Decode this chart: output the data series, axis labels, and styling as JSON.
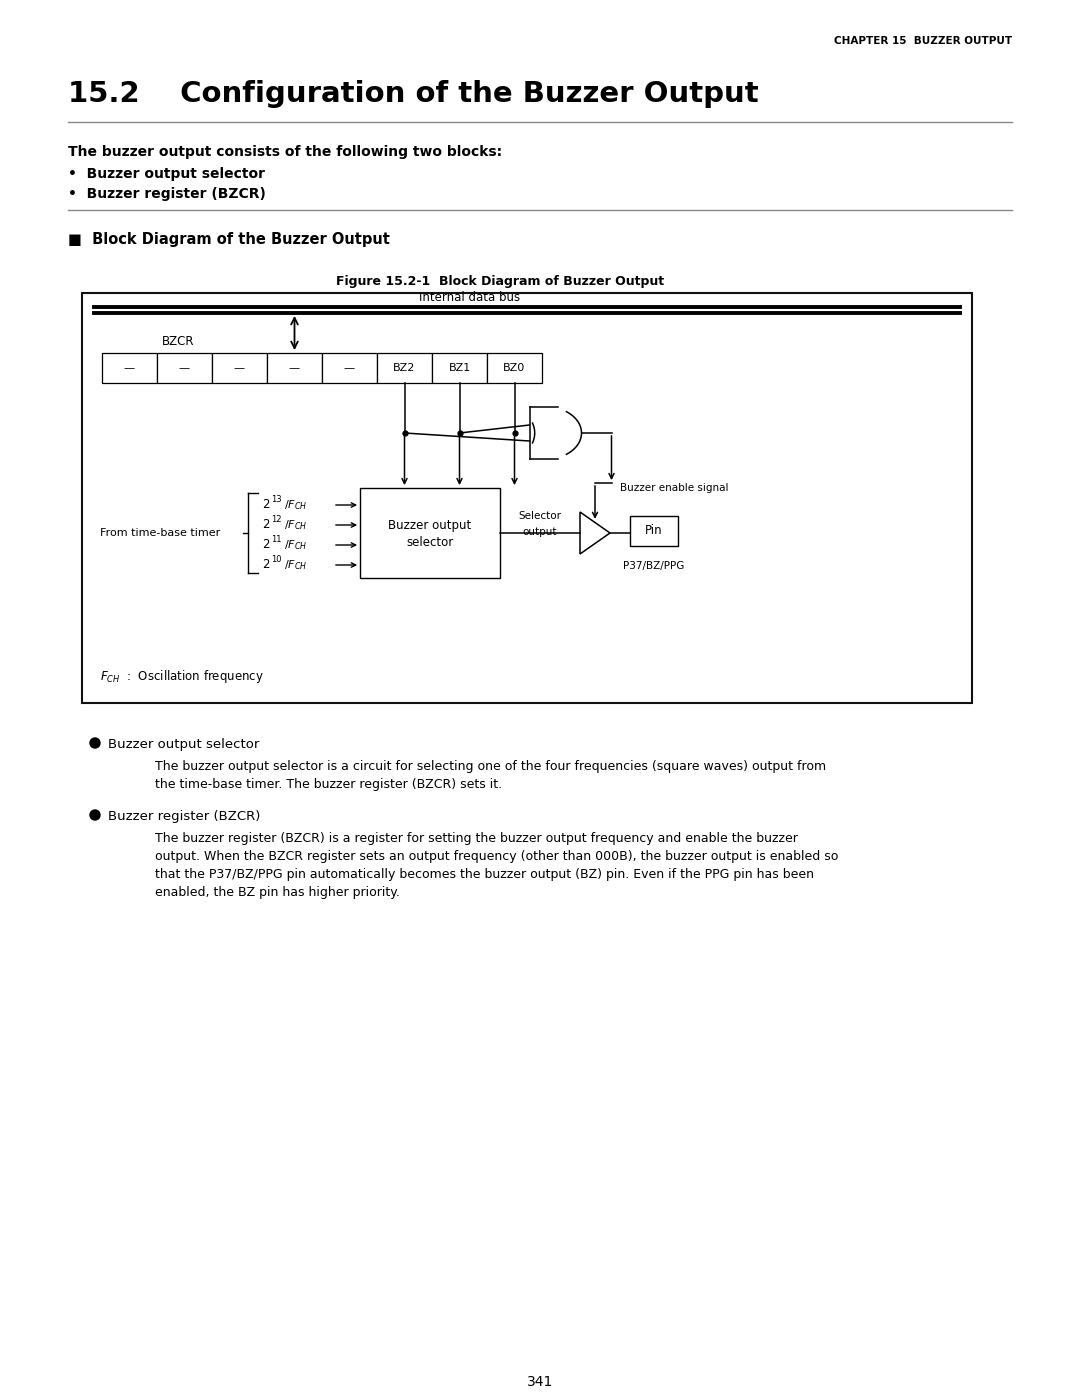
{
  "page_title": "CHAPTER 15  BUZZER OUTPUT",
  "section_title": "15.2    Configuration of the Buzzer Output",
  "intro_bold": "The buzzer output consists of the following two blocks:",
  "bullets": [
    "Buzzer output selector",
    "Buzzer register (BZCR)"
  ],
  "section2_title": "■  Block Diagram of the Buzzer Output",
  "fig_title": "Figure 15.2-1  Block Diagram of Buzzer Output",
  "bullet1_title": "Buzzer output selector",
  "bullet1_text": "The buzzer output selector is a circuit for selecting one of the four frequencies (square waves) output from the time-base timer. The buzzer register (BZCR) sets it.",
  "bullet2_title": "Buzzer register (BZCR)",
  "bullet2_text_parts": [
    "The buzzer register (BZCR) is a register for setting the buzzer output frequency and enable the buzzer output. When the BZCR register sets an output frequency (other than 000",
    "B",
    "), the buzzer output is enabled so that the P37/BZ/PPG pin automatically becomes the buzzer output (BZ) pin. Even if the PPG pin has been enabled, the BZ pin has higher priority."
  ],
  "page_number": "341",
  "bg_color": "#ffffff",
  "text_color": "#000000",
  "reg_cells": [
    "—",
    "—",
    "—",
    "—",
    "—",
    "BZ2",
    "BZ1",
    "BZ0"
  ],
  "freq_labels": [
    "2 13/FCH",
    "2 12/FCH",
    "2 11/FCH",
    "2 10/FCH"
  ],
  "freq_exps": [
    "13",
    "12",
    "11",
    "10"
  ]
}
